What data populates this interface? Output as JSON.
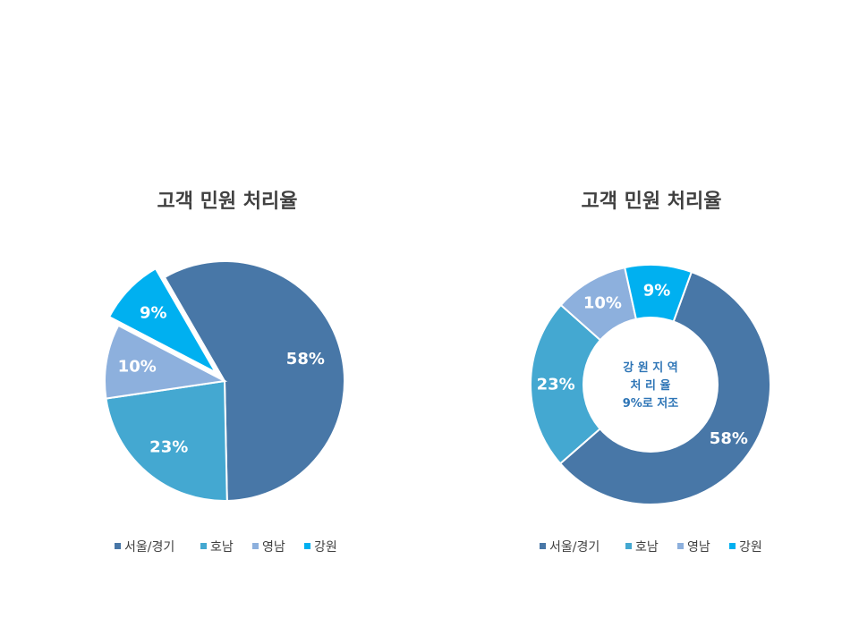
{
  "chart_data": [
    {
      "type": "pie",
      "title": "고객 민원 처리율",
      "categories": [
        "서울/경기",
        "호남",
        "영남",
        "강원"
      ],
      "values": [
        58,
        23,
        10,
        9
      ],
      "labels": [
        "58%",
        "23%",
        "10%",
        "9%"
      ],
      "colors": [
        "#4877a7",
        "#44a8d1",
        "#8db0dd",
        "#00b0f0"
      ],
      "exploded": [
        "강원"
      ],
      "legend": "bottom"
    },
    {
      "type": "pie",
      "title": "고객 민원 처리율",
      "categories": [
        "서울/경기",
        "호남",
        "영남",
        "강원"
      ],
      "values": [
        58,
        23,
        10,
        9
      ],
      "labels": [
        "58%",
        "23%",
        "10%",
        "9%"
      ],
      "colors": [
        "#4877a7",
        "#44a8d1",
        "#8db0dd",
        "#00b0f0"
      ],
      "style": "doughnut",
      "center_text": [
        "강 원 지 역",
        "처 리 율",
        "9%로 저조"
      ],
      "legend": "bottom"
    }
  ]
}
